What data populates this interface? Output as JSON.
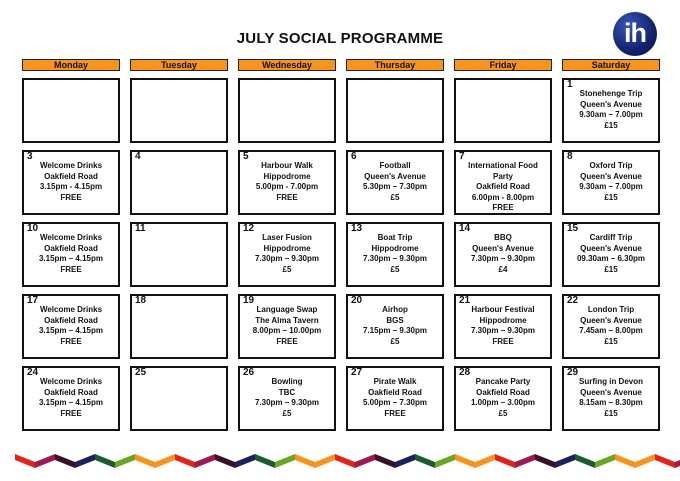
{
  "title": "JULY SOCIAL PROGRAMME",
  "logo_text": "ih",
  "days": [
    "Monday",
    "Tuesday",
    "Wednesday",
    "Thursday",
    "Friday",
    "Saturday"
  ],
  "cells": [
    {
      "date": "",
      "lines": []
    },
    {
      "date": "",
      "lines": []
    },
    {
      "date": "",
      "lines": []
    },
    {
      "date": "",
      "lines": []
    },
    {
      "date": "",
      "lines": []
    },
    {
      "date": "1",
      "lines": [
        "Stonehenge Trip",
        "Queen's Avenue",
        "9.30am – 7.00pm",
        "£15"
      ]
    },
    {
      "date": "3",
      "lines": [
        "Welcome Drinks",
        "Oakfield Road",
        "3.15pm - 4.15pm",
        "FREE"
      ]
    },
    {
      "date": "4",
      "lines": []
    },
    {
      "date": "5",
      "lines": [
        "Harbour Walk",
        "Hippodrome",
        "5.00pm - 7.00pm",
        "FREE"
      ]
    },
    {
      "date": "6",
      "lines": [
        "Football",
        "Queen's Avenue",
        "5.30pm – 7.30pm",
        "£5"
      ]
    },
    {
      "date": "7",
      "lines": [
        "International Food",
        "Party",
        "Oakfield Road",
        "6.00pm - 8.00pm",
        "FREE"
      ]
    },
    {
      "date": "8",
      "lines": [
        "Oxford Trip",
        "Queen's Avenue",
        "9.30am – 7.00pm",
        "£15"
      ]
    },
    {
      "date": "10",
      "lines": [
        "Welcome Drinks",
        "Oakfield Road",
        "3.15pm – 4.15pm",
        "FREE"
      ]
    },
    {
      "date": "11",
      "lines": []
    },
    {
      "date": "12",
      "lines": [
        "Laser Fusion",
        "Hippodrome",
        "7.30pm – 9.30pm",
        "£5"
      ]
    },
    {
      "date": "13",
      "lines": [
        "Boat Trip",
        "Hippodrome",
        "7.30pm – 9.30pm",
        "£5"
      ]
    },
    {
      "date": "14",
      "lines": [
        "BBQ",
        "Queen's Avenue",
        "7.30pm – 9.30pm",
        "£4"
      ]
    },
    {
      "date": "15",
      "lines": [
        "Cardiff Trip",
        "Queen's Avenue",
        "09.30am – 6.30pm",
        "£15"
      ]
    },
    {
      "date": "17",
      "lines": [
        "Welcome Drinks",
        "Oakfield Road",
        "3.15pm – 4.15pm",
        "FREE"
      ]
    },
    {
      "date": "18",
      "lines": []
    },
    {
      "date": "19",
      "lines": [
        "Language Swap",
        "The Alma Tavern",
        "8.00pm – 10.00pm",
        "FREE"
      ]
    },
    {
      "date": "20",
      "lines": [
        "Airhop",
        "BGS",
        "7.15pm – 9.30pm",
        "£5"
      ]
    },
    {
      "date": "21",
      "lines": [
        "Harbour Festival",
        "Hippodrome",
        "7.30pm – 9.30pm",
        "FREE"
      ]
    },
    {
      "date": "22",
      "lines": [
        "London Trip",
        "Queen's Avenue",
        "7.45am – 8.00pm",
        "£15"
      ]
    },
    {
      "date": "24",
      "lines": [
        "Welcome Drinks",
        "Oakfield Road",
        "3.15pm – 4.15pm",
        "FREE"
      ]
    },
    {
      "date": "25",
      "lines": []
    },
    {
      "date": "26",
      "lines": [
        "Bowling",
        "TBC",
        "7.30pm – 9.30pm",
        "£5"
      ]
    },
    {
      "date": "27",
      "lines": [
        "Pirate Walk",
        "Oakfield Road",
        "5.00pm – 7.30pm",
        "FREE"
      ]
    },
    {
      "date": "28",
      "lines": [
        "Pancake Party",
        "Oakfield Road",
        "1.00pm – 3.00pm",
        "£5"
      ]
    },
    {
      "date": "29",
      "lines": [
        "Surfing in Devon",
        "Queen's Avenue",
        "8.15am – 8.30pm",
        "£15"
      ]
    }
  ],
  "colors": {
    "header_fill": "#f7941d",
    "zigzag": [
      "#e2231a",
      "#9b1b4a",
      "#3a0f2e",
      "#1b2060",
      "#1e5b2a",
      "#6aa524",
      "#f7941d",
      "#f7941d"
    ]
  }
}
